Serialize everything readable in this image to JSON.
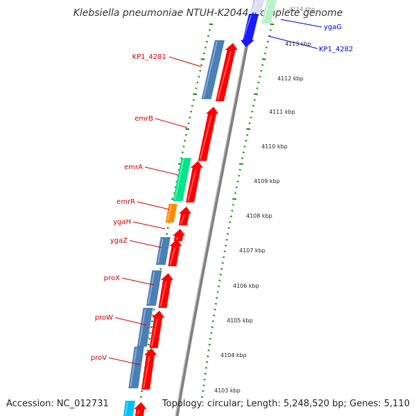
{
  "title": "Klebsiella pneumoniae NTUH-K2044, complete genome",
  "footer": {
    "accession": "Accession: NC_012731",
    "summary": "Topology: circular; Length: 5,248,520 bp; Genes: 5,110"
  },
  "colors": {
    "backbone": "#808080",
    "forward_cds": "#ff0000",
    "reverse_cds": "#4a7fb5",
    "emrA": "#00e589",
    "emrR": "#ff8c00",
    "kp1_4282": "#1a1aff",
    "ygaG": "#b8f0c8",
    "proV_partial": "#00bfff",
    "tick_major": "#1e8a1e",
    "tick_minor": "#1e8a1e",
    "label_left": "#cc0000",
    "label_right": "#0000cc"
  },
  "left_labels": [
    {
      "text": "KP1_4281"
    },
    {
      "text": "emrB"
    },
    {
      "text": "emrA"
    },
    {
      "text": "emrR"
    },
    {
      "text": "ygaH"
    },
    {
      "text": "ygaZ"
    },
    {
      "text": "proX"
    },
    {
      "text": "proW"
    },
    {
      "text": "proV"
    }
  ],
  "right_labels": [
    {
      "text": "ygaG"
    },
    {
      "text": "KP1_4282"
    }
  ],
  "kbp_labels": [
    "4113 kbp",
    "4112 kbp",
    "4111 kbp",
    "4110 kbp",
    "4109 kbp",
    "4108 kbp",
    "4107 kbp",
    "4106 kbp",
    "4105 kbp",
    "4104 kbp",
    "4103 kbp"
  ],
  "kbp_faded": "4114 kbp"
}
